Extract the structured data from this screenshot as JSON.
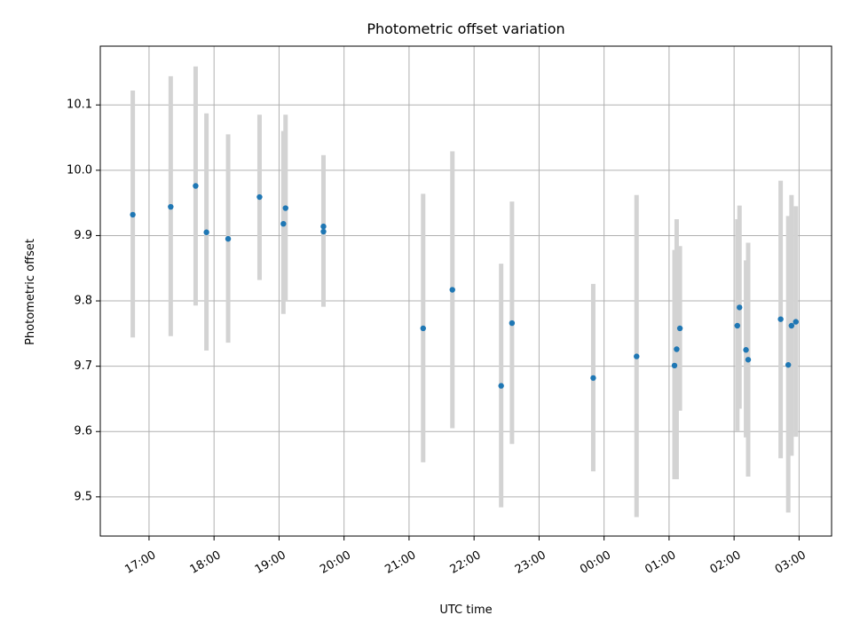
{
  "chart_data": {
    "type": "scatter",
    "title": "Photometric offset variation",
    "xlabel": "UTC time",
    "ylabel": "Photometric offset",
    "grid": true,
    "xlim": [
      "16:15",
      "03:30"
    ],
    "ylim": [
      9.44,
      10.19
    ],
    "x_ticks": [
      "17:00",
      "18:00",
      "19:00",
      "20:00",
      "21:00",
      "22:00",
      "23:00",
      "00:00",
      "01:00",
      "02:00",
      "03:00"
    ],
    "y_ticks": [
      9.5,
      9.6,
      9.7,
      9.8,
      9.9,
      10.0,
      10.1
    ],
    "y_tick_labels": [
      "9.5",
      "9.6",
      "9.7",
      "9.8",
      "9.9",
      "10.0",
      "10.1"
    ],
    "marker_color": "#1f77b4",
    "errorbar_color": "#d3d3d3",
    "points": [
      {
        "x": "16:45",
        "y": 9.932,
        "ylow": 9.744,
        "yhigh": 10.122
      },
      {
        "x": "17:20",
        "y": 9.944,
        "ylow": 9.746,
        "yhigh": 10.144
      },
      {
        "x": "17:43",
        "y": 9.976,
        "ylow": 9.793,
        "yhigh": 10.159
      },
      {
        "x": "17:53",
        "y": 9.905,
        "ylow": 9.724,
        "yhigh": 10.087
      },
      {
        "x": "18:13",
        "y": 9.895,
        "ylow": 9.736,
        "yhigh": 10.055
      },
      {
        "x": "18:42",
        "y": 9.959,
        "ylow": 9.832,
        "yhigh": 10.085
      },
      {
        "x": "19:04",
        "y": 9.918,
        "ylow": 9.78,
        "yhigh": 10.06
      },
      {
        "x": "19:06",
        "y": 9.942,
        "ylow": 9.8,
        "yhigh": 10.085
      },
      {
        "x": "19:41",
        "y": 9.914,
        "ylow": 9.8,
        "yhigh": 10.023
      },
      {
        "x": "19:41",
        "y": 9.906,
        "ylow": 9.791,
        "yhigh": 10.023
      },
      {
        "x": "21:13",
        "y": 9.758,
        "ylow": 9.553,
        "yhigh": 9.964
      },
      {
        "x": "21:40",
        "y": 9.817,
        "ylow": 9.605,
        "yhigh": 10.029
      },
      {
        "x": "22:25",
        "y": 9.67,
        "ylow": 9.484,
        "yhigh": 9.857
      },
      {
        "x": "22:35",
        "y": 9.766,
        "ylow": 9.581,
        "yhigh": 9.952
      },
      {
        "x": "23:50",
        "y": 9.682,
        "ylow": 9.539,
        "yhigh": 9.826
      },
      {
        "x": "00:30",
        "y": 9.715,
        "ylow": 9.469,
        "yhigh": 9.962
      },
      {
        "x": "01:05",
        "y": 9.701,
        "ylow": 9.527,
        "yhigh": 9.878
      },
      {
        "x": "01:07",
        "y": 9.726,
        "ylow": 9.527,
        "yhigh": 9.925
      },
      {
        "x": "01:10",
        "y": 9.758,
        "ylow": 9.632,
        "yhigh": 9.884
      },
      {
        "x": "02:03",
        "y": 9.762,
        "ylow": 9.601,
        "yhigh": 9.925
      },
      {
        "x": "02:05",
        "y": 9.79,
        "ylow": 9.635,
        "yhigh": 9.946
      },
      {
        "x": "02:11",
        "y": 9.725,
        "ylow": 9.591,
        "yhigh": 9.862
      },
      {
        "x": "02:13",
        "y": 9.71,
        "ylow": 9.531,
        "yhigh": 9.889
      },
      {
        "x": "02:43",
        "y": 9.772,
        "ylow": 9.559,
        "yhigh": 9.984
      },
      {
        "x": "02:50",
        "y": 9.702,
        "ylow": 9.476,
        "yhigh": 9.93
      },
      {
        "x": "02:53",
        "y": 9.762,
        "ylow": 9.563,
        "yhigh": 9.962
      },
      {
        "x": "02:57",
        "y": 9.768,
        "ylow": 9.592,
        "yhigh": 9.945
      }
    ]
  }
}
